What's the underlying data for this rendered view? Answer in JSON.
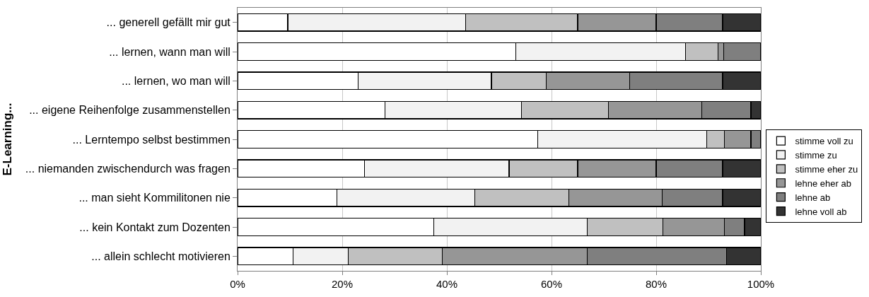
{
  "chart_data": {
    "type": "bar",
    "orientation": "horizontal",
    "stacked": true,
    "ylabel": "E-Learning...",
    "categories": [
      "... generell gefällt mir gut",
      "... lernen, wann man will",
      "... lernen, wo man will",
      "... eigene Reihenfolge zusammenstellen",
      "... Lerntempo selbst bestimmen",
      "... niemanden zwischendurch was fragen",
      "... man sieht Kommilitonen nie",
      "... kein Kontakt zum Dozenten",
      "... allein schlecht motivieren"
    ],
    "series": [
      {
        "name": "stimme voll zu",
        "color": "#ffffff",
        "values": [
          9.6,
          53.2,
          23.0,
          28.2,
          57.4,
          24.3,
          19.0,
          37.5,
          10.6
        ]
      },
      {
        "name": "stimme zu",
        "color": "#f2f2f2",
        "values": [
          34.0,
          32.4,
          25.5,
          26.1,
          32.3,
          27.6,
          26.3,
          29.3,
          10.5
        ]
      },
      {
        "name": "stimme eher zu",
        "color": "#c0c0c0",
        "values": [
          21.4,
          6.2,
          10.5,
          16.6,
          3.3,
          13.1,
          18.0,
          14.5,
          18.0
        ]
      },
      {
        "name": "lehne eher ab",
        "color": "#969696",
        "values": [
          15.0,
          1.1,
          15.9,
          17.8,
          5.1,
          15.0,
          17.8,
          11.7,
          27.7
        ]
      },
      {
        "name": "lehne ab",
        "color": "#7f7f7f",
        "values": [
          12.7,
          7.1,
          17.8,
          9.4,
          1.9,
          12.7,
          11.6,
          3.9,
          26.6
        ]
      },
      {
        "name": "lehne voll ab",
        "color": "#333333",
        "values": [
          7.3,
          null,
          7.3,
          1.9,
          null,
          7.3,
          7.3,
          3.1,
          6.6
        ]
      }
    ],
    "xlim": [
      0,
      100
    ],
    "xticks": [
      {
        "value": 0,
        "label": "0%"
      },
      {
        "value": 20,
        "label": "20%"
      },
      {
        "value": 40,
        "label": "40%"
      },
      {
        "value": 60,
        "label": "60%"
      },
      {
        "value": 80,
        "label": "80%"
      },
      {
        "value": 100,
        "label": "100%"
      }
    ],
    "grid": "x",
    "legend": "right"
  }
}
